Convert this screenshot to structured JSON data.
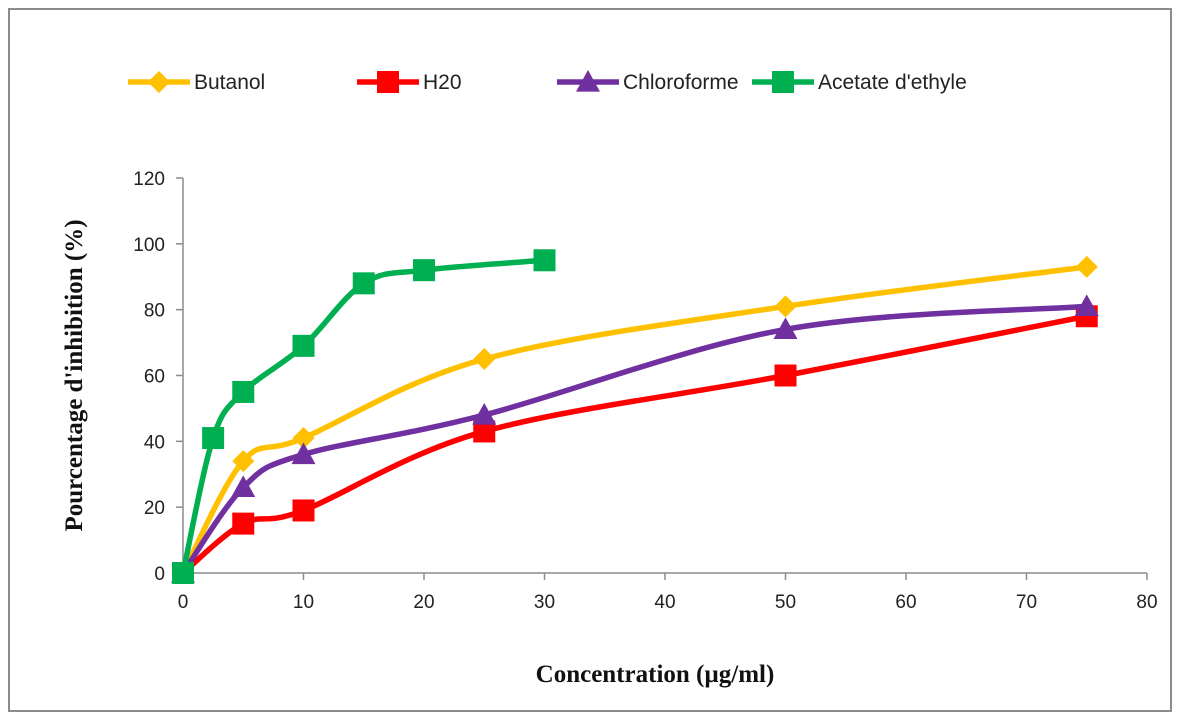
{
  "chart_data": {
    "type": "line",
    "xlabel": "Concentration (µg/ml)",
    "ylabel": "Pourcentage d'inhibition (%)",
    "xlim": [
      0,
      80
    ],
    "ylim": [
      0,
      120
    ],
    "xticks": [
      "0",
      "10",
      "20",
      "30",
      "40",
      "50",
      "60",
      "70",
      "80"
    ],
    "yticks": [
      "0",
      "20",
      "40",
      "60",
      "80",
      "100",
      "120"
    ],
    "grid": false,
    "legend_position": "top",
    "series": [
      {
        "name": "Butanol",
        "color": "#ffc000",
        "marker": "diamond",
        "x": [
          0,
          5,
          10,
          25,
          50,
          75
        ],
        "y": [
          0,
          34,
          41,
          65,
          81,
          93
        ]
      },
      {
        "name": "H20",
        "color": "#ff0000",
        "marker": "square",
        "x": [
          0,
          5,
          10,
          25,
          50,
          75
        ],
        "y": [
          0,
          15,
          19,
          43,
          60,
          78
        ]
      },
      {
        "name": "Chloroforme",
        "color": "#7030a0",
        "marker": "triangle",
        "x": [
          0,
          5,
          10,
          25,
          50,
          75
        ],
        "y": [
          0,
          26,
          36,
          48,
          74,
          81
        ]
      },
      {
        "name": "Acetate d'ethyle",
        "color": "#00b050",
        "marker": "square",
        "x": [
          0,
          2.5,
          5,
          10,
          15,
          20,
          30
        ],
        "y": [
          0,
          41,
          55,
          69,
          88,
          92,
          95
        ]
      }
    ]
  }
}
